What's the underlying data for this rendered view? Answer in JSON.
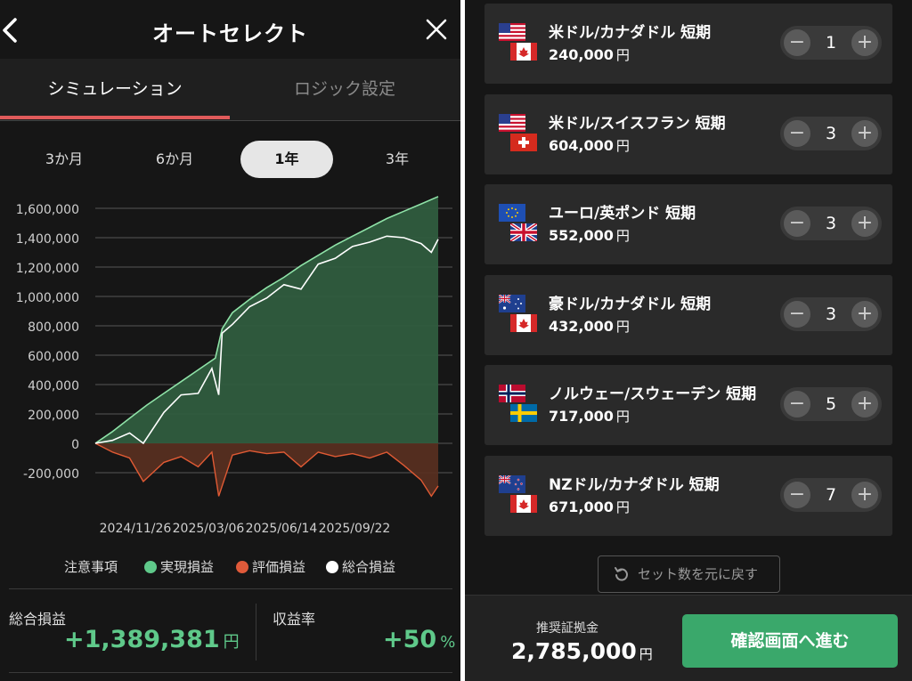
{
  "header": {
    "title": "オートセレクト"
  },
  "tabs": [
    {
      "label": "シミュレーション",
      "active": true
    },
    {
      "label": "ロジック設定",
      "active": false
    }
  ],
  "periods": [
    {
      "label": "3か月",
      "selected": false
    },
    {
      "label": "6か月",
      "selected": false
    },
    {
      "label": "1年",
      "selected": true
    },
    {
      "label": "3年",
      "selected": false
    }
  ],
  "chart_data": {
    "type": "area",
    "title": "",
    "xlabel": "",
    "ylabel": "",
    "y_ticks": [
      "1,600,000",
      "1,400,000",
      "1,200,000",
      "1,000,000",
      "800,000",
      "600,000",
      "400,000",
      "200,000",
      "0",
      "-200,000"
    ],
    "y_tick_values": [
      1600000,
      1400000,
      1200000,
      1000000,
      800000,
      600000,
      400000,
      200000,
      0,
      -200000
    ],
    "ylim": [
      -200000,
      1600000
    ],
    "x_ticks": [
      "2024/11/26",
      "2025/03/06",
      "2025/06/14",
      "2025/09/22"
    ],
    "grid": true,
    "series": [
      {
        "name": "実現損益",
        "color": "#8fe3a8",
        "x": [
          0,
          0.05,
          0.1,
          0.15,
          0.2,
          0.25,
          0.3,
          0.35,
          0.37,
          0.4,
          0.45,
          0.5,
          0.55,
          0.6,
          0.65,
          0.7,
          0.75,
          0.8,
          0.85,
          0.9,
          0.95,
          1.0
        ],
        "values": [
          0,
          80000,
          170000,
          260000,
          340000,
          420000,
          500000,
          580000,
          780000,
          890000,
          980000,
          1060000,
          1130000,
          1210000,
          1280000,
          1350000,
          1410000,
          1470000,
          1530000,
          1580000,
          1630000,
          1680000
        ]
      },
      {
        "name": "評価損益",
        "color": "#e05a34",
        "x": [
          0,
          0.05,
          0.1,
          0.14,
          0.2,
          0.25,
          0.3,
          0.34,
          0.36,
          0.4,
          0.45,
          0.5,
          0.55,
          0.6,
          0.65,
          0.7,
          0.75,
          0.8,
          0.85,
          0.9,
          0.95,
          0.98,
          1.0
        ],
        "values": [
          0,
          -60000,
          -100000,
          -260000,
          -130000,
          -90000,
          -160000,
          -60000,
          -360000,
          -80000,
          -50000,
          -70000,
          -60000,
          -160000,
          -60000,
          -90000,
          -70000,
          -100000,
          -60000,
          -150000,
          -250000,
          -360000,
          -290000
        ]
      },
      {
        "name": "総合損益",
        "color": "#ffffff",
        "x": [
          0,
          0.05,
          0.1,
          0.14,
          0.2,
          0.25,
          0.3,
          0.34,
          0.36,
          0.37,
          0.4,
          0.45,
          0.5,
          0.55,
          0.6,
          0.65,
          0.7,
          0.75,
          0.8,
          0.85,
          0.9,
          0.95,
          0.98,
          1.0
        ],
        "values": [
          0,
          20000,
          70000,
          0,
          210000,
          330000,
          340000,
          510000,
          330000,
          750000,
          810000,
          930000,
          990000,
          1080000,
          1050000,
          1220000,
          1260000,
          1340000,
          1370000,
          1410000,
          1400000,
          1360000,
          1300000,
          1389381
        ]
      }
    ]
  },
  "legend": {
    "note": "注意事項",
    "items": [
      {
        "label": "実現損益",
        "color": "#5fc98a"
      },
      {
        "label": "評価損益",
        "color": "#e05a3a"
      },
      {
        "label": "総合損益",
        "color": "#ffffff"
      }
    ]
  },
  "summary": {
    "total_label": "総合損益",
    "total_value": "+1,389,381",
    "total_unit": "円",
    "rate_label": "収益率",
    "rate_value": "+50",
    "rate_unit": "%"
  },
  "pairs": [
    {
      "name": "米ドル/カナダドル 短期",
      "amount": "240,000",
      "unit": "円",
      "count": "1",
      "flags": [
        "us",
        "ca"
      ]
    },
    {
      "name": "米ドル/スイスフラン 短期",
      "amount": "604,000",
      "unit": "円",
      "count": "3",
      "flags": [
        "us",
        "ch"
      ]
    },
    {
      "name": "ユーロ/英ポンド 短期",
      "amount": "552,000",
      "unit": "円",
      "count": "3",
      "flags": [
        "eu",
        "gb"
      ]
    },
    {
      "name": "豪ドル/カナダドル 短期",
      "amount": "432,000",
      "unit": "円",
      "count": "3",
      "flags": [
        "au",
        "ca"
      ]
    },
    {
      "name": "ノルウェー/スウェーデン 短期",
      "amount": "717,000",
      "unit": "円",
      "count": "5",
      "flags": [
        "no",
        "se"
      ]
    },
    {
      "name": "NZドル/カナダドル 短期",
      "amount": "671,000",
      "unit": "円",
      "count": "7",
      "flags": [
        "nz",
        "ca"
      ]
    }
  ],
  "reset": {
    "label": "セット数を元に戻す",
    "icon": "undo-icon"
  },
  "footer": {
    "margin_label": "推奨証拠金",
    "margin_value": "2,785,000",
    "margin_unit": "円",
    "confirm_label": "確認画面へ進む"
  },
  "icons": {
    "back": "chevron-left-icon",
    "close": "close-icon",
    "minus": "−",
    "plus": "+"
  },
  "colors": {
    "accent_green": "#3aa86b",
    "profit_green": "#5fc98a",
    "tab_underline": "#e05a5a",
    "loss_orange": "#e05a34"
  }
}
